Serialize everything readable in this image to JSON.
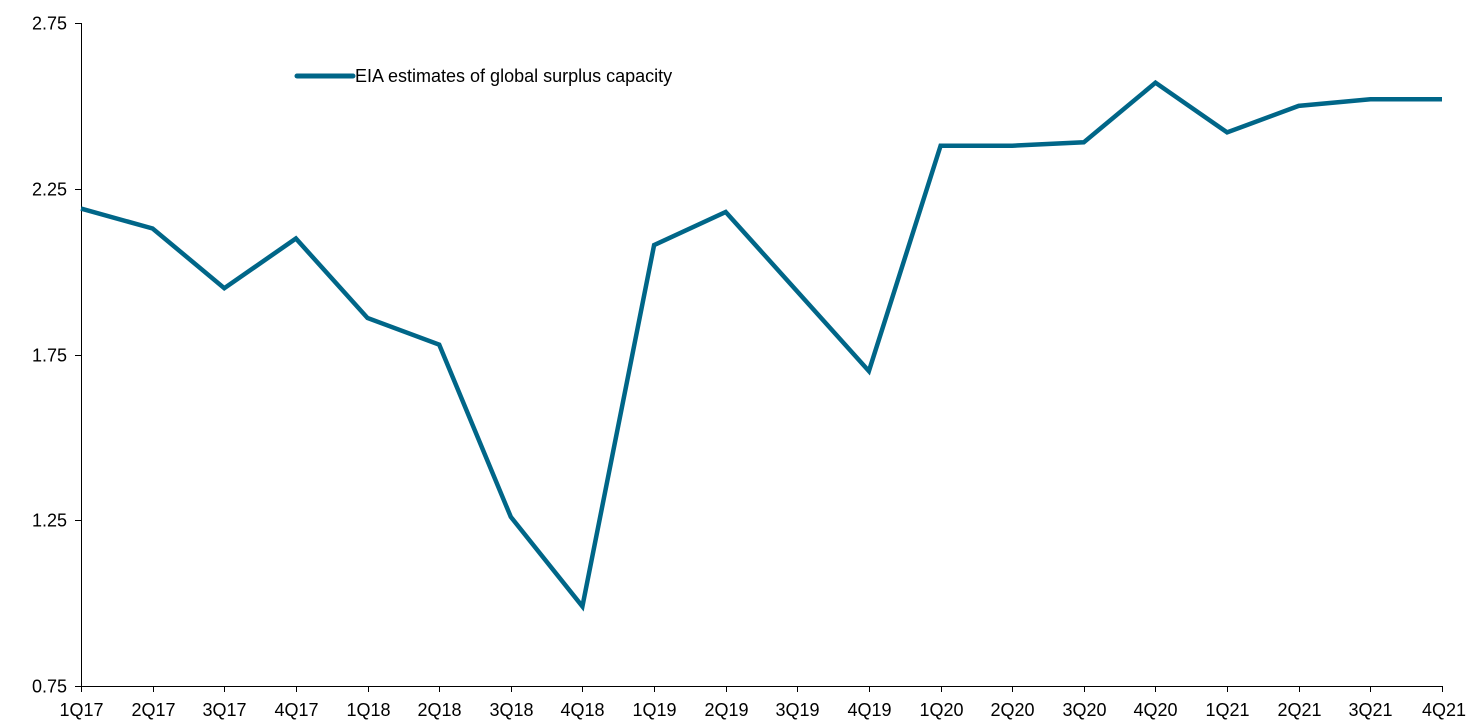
{
  "chart_data": {
    "type": "line",
    "categories": [
      "1Q17",
      "2Q17",
      "3Q17",
      "4Q17",
      "1Q18",
      "2Q18",
      "3Q18",
      "4Q18",
      "1Q19",
      "2Q19",
      "3Q19",
      "4Q19",
      "1Q20",
      "2Q20",
      "3Q20",
      "4Q20",
      "1Q21",
      "2Q21",
      "3Q21",
      "4Q21"
    ],
    "series": [
      {
        "name": "EIA estimates of global surplus capacity",
        "color": "#006688",
        "values": [
          2.19,
          2.13,
          1.95,
          2.1,
          1.86,
          1.78,
          1.26,
          0.99,
          2.08,
          2.18,
          1.94,
          1.7,
          2.38,
          2.38,
          2.39,
          2.57,
          2.42,
          2.5,
          2.52,
          2.52
        ]
      }
    ],
    "ylim": [
      0.75,
      2.75
    ],
    "yticks": [
      "0.75",
      "1.25",
      "1.75",
      "2.25",
      "2.75"
    ],
    "grid": false,
    "legend_position": "top-left"
  }
}
